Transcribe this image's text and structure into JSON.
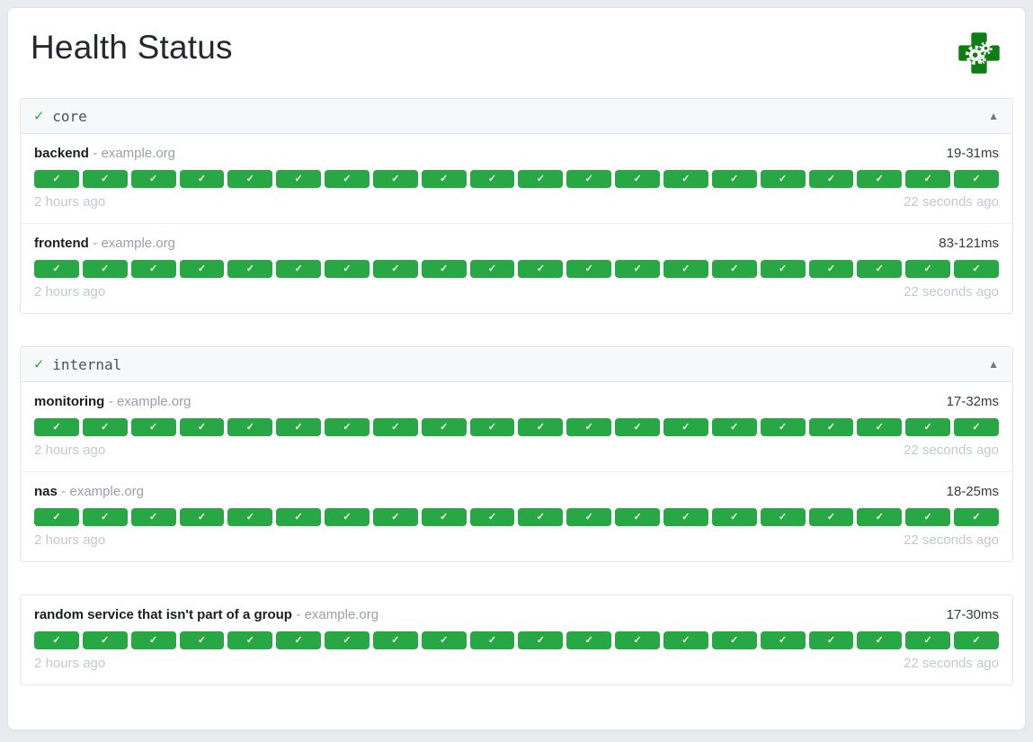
{
  "page": {
    "title": "Health Status"
  },
  "logo": {
    "label": "gatus-logo",
    "cross_color": "#0f7d14",
    "gear_color": "#ffffff"
  },
  "colors": {
    "success_green": "#28a745",
    "page_background": "#e9ecef",
    "card_background": "#ffffff",
    "group_header_background": "#f7f8f9",
    "muted_text": "#9aa0a6",
    "timestamp_text": "#c3c8ce"
  },
  "groups": [
    {
      "name": "core",
      "status_icon": "✓",
      "collapse_icon": "▲",
      "services": [
        {
          "name": "backend",
          "host_label": "- example.org",
          "response_time": "19-31ms",
          "history_count": 20,
          "history_icon": "✓",
          "oldest": "2 hours ago",
          "newest": "22 seconds ago"
        },
        {
          "name": "frontend",
          "host_label": "- example.org",
          "response_time": "83-121ms",
          "history_count": 20,
          "history_icon": "✓",
          "oldest": "2 hours ago",
          "newest": "22 seconds ago"
        }
      ]
    },
    {
      "name": "internal",
      "status_icon": "✓",
      "collapse_icon": "▲",
      "services": [
        {
          "name": "monitoring",
          "host_label": "- example.org",
          "response_time": "17-32ms",
          "history_count": 20,
          "history_icon": "✓",
          "oldest": "2 hours ago",
          "newest": "22 seconds ago"
        },
        {
          "name": "nas",
          "host_label": "- example.org",
          "response_time": "18-25ms",
          "history_count": 20,
          "history_icon": "✓",
          "oldest": "2 hours ago",
          "newest": "22 seconds ago"
        }
      ]
    },
    {
      "name": null,
      "status_icon": "",
      "collapse_icon": "",
      "services": [
        {
          "name": "random service that isn't part of a group",
          "host_label": "- example.org",
          "response_time": "17-30ms",
          "history_count": 20,
          "history_icon": "✓",
          "oldest": "2 hours ago",
          "newest": "22 seconds ago"
        }
      ]
    }
  ]
}
